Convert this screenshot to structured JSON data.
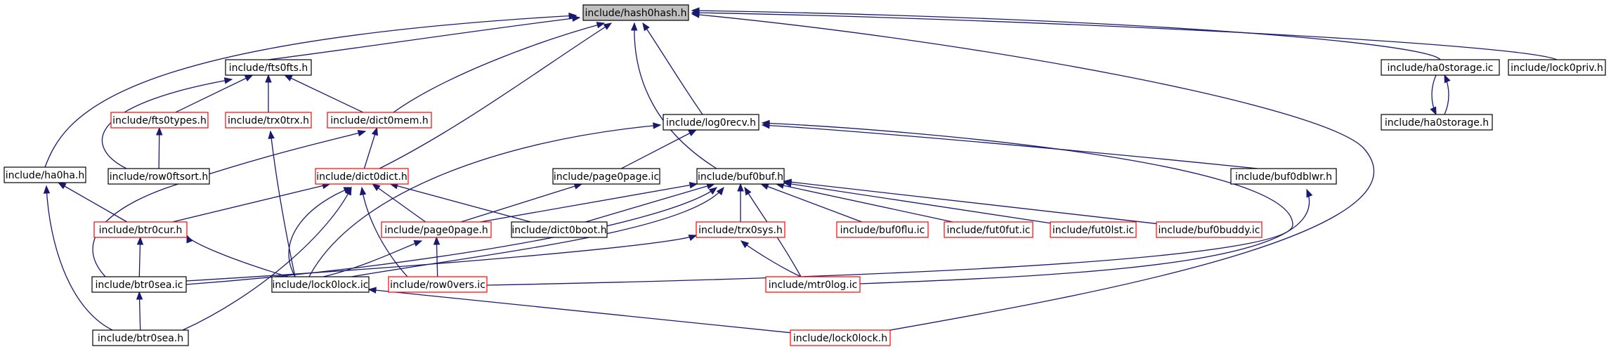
{
  "colors": {
    "background": "#ffffff",
    "edge": "#191970",
    "node_border_default": "#000000",
    "node_border_incomplete": "#ff0000",
    "node_fill_root": "#bfbfbf",
    "node_fill": "#ffffff"
  },
  "nodes": [
    {
      "id": "hash0hash",
      "label": "include/hash0hash.h",
      "style": "root"
    },
    {
      "id": "fts0fts",
      "label": "include/fts0fts.h",
      "style": "normal"
    },
    {
      "id": "ha0storage_ic",
      "label": "include/ha0storage.ic",
      "style": "normal"
    },
    {
      "id": "lock0priv",
      "label": "include/lock0priv.h",
      "style": "normal"
    },
    {
      "id": "fts0types",
      "label": "include/fts0types.h",
      "style": "incomplete"
    },
    {
      "id": "trx0trx",
      "label": "include/trx0trx.h",
      "style": "incomplete"
    },
    {
      "id": "dict0mem",
      "label": "include/dict0mem.h",
      "style": "incomplete"
    },
    {
      "id": "log0recv",
      "label": "include/log0recv.h",
      "style": "normal"
    },
    {
      "id": "ha0storage_h",
      "label": "include/ha0storage.h",
      "style": "normal"
    },
    {
      "id": "ha0ha",
      "label": "include/ha0ha.h",
      "style": "normal"
    },
    {
      "id": "row0ftsort",
      "label": "include/row0ftsort.h",
      "style": "normal"
    },
    {
      "id": "dict0dict",
      "label": "include/dict0dict.h",
      "style": "incomplete"
    },
    {
      "id": "page0page_ic",
      "label": "include/page0page.ic",
      "style": "normal"
    },
    {
      "id": "buf0buf",
      "label": "include/buf0buf.h",
      "style": "normal"
    },
    {
      "id": "buf0dblwr",
      "label": "include/buf0dblwr.h",
      "style": "normal"
    },
    {
      "id": "btr0cur",
      "label": "include/btr0cur.h",
      "style": "incomplete"
    },
    {
      "id": "page0page_h",
      "label": "include/page0page.h",
      "style": "incomplete"
    },
    {
      "id": "dict0boot",
      "label": "include/dict0boot.h",
      "style": "normal"
    },
    {
      "id": "trx0sys",
      "label": "include/trx0sys.h",
      "style": "incomplete"
    },
    {
      "id": "buf0flu",
      "label": "include/buf0flu.ic",
      "style": "incomplete"
    },
    {
      "id": "fut0fut",
      "label": "include/fut0fut.ic",
      "style": "incomplete"
    },
    {
      "id": "fut0lst",
      "label": "include/fut0lst.ic",
      "style": "incomplete"
    },
    {
      "id": "buf0buddy",
      "label": "include/buf0buddy.ic",
      "style": "incomplete"
    },
    {
      "id": "btr0sea_ic",
      "label": "include/btr0sea.ic",
      "style": "normal"
    },
    {
      "id": "lock0lock_ic",
      "label": "include/lock0lock.ic",
      "style": "normal"
    },
    {
      "id": "row0vers",
      "label": "include/row0vers.ic",
      "style": "incomplete"
    },
    {
      "id": "mtr0log",
      "label": "include/mtr0log.ic",
      "style": "incomplete"
    },
    {
      "id": "btr0sea_h",
      "label": "include/btr0sea.h",
      "style": "normal"
    },
    {
      "id": "lock0lock_h",
      "label": "include/lock0lock.h",
      "style": "incomplete"
    }
  ],
  "edges": [
    {
      "from": "fts0fts",
      "to": "hash0hash"
    },
    {
      "from": "ha0storage_ic",
      "to": "hash0hash"
    },
    {
      "from": "lock0priv",
      "to": "hash0hash"
    },
    {
      "from": "dict0mem",
      "to": "hash0hash"
    },
    {
      "from": "log0recv",
      "to": "hash0hash"
    },
    {
      "from": "ha0ha",
      "to": "hash0hash"
    },
    {
      "from": "dict0dict",
      "to": "hash0hash"
    },
    {
      "from": "buf0buf",
      "to": "hash0hash"
    },
    {
      "from": "lock0lock_h",
      "to": "hash0hash"
    },
    {
      "from": "fts0types",
      "to": "fts0fts"
    },
    {
      "from": "trx0trx",
      "to": "fts0fts"
    },
    {
      "from": "dict0mem",
      "to": "fts0fts"
    },
    {
      "from": "row0ftsort",
      "to": "fts0fts"
    },
    {
      "from": "row0ftsort",
      "to": "fts0types"
    },
    {
      "from": "ha0storage_h",
      "to": "ha0storage_ic"
    },
    {
      "from": "ha0storage_ic",
      "to": "ha0storage_h"
    },
    {
      "from": "dict0dict",
      "to": "dict0mem"
    },
    {
      "from": "btr0sea_ic",
      "to": "dict0mem"
    },
    {
      "from": "lock0lock_ic",
      "to": "trx0trx"
    },
    {
      "from": "page0page_ic",
      "to": "log0recv"
    },
    {
      "from": "buf0dblwr",
      "to": "log0recv"
    },
    {
      "from": "lock0lock_ic",
      "to": "log0recv"
    },
    {
      "from": "row0vers",
      "to": "log0recv"
    },
    {
      "from": "mtr0log",
      "to": "buf0dblwr"
    },
    {
      "from": "btr0cur",
      "to": "ha0ha"
    },
    {
      "from": "btr0sea_h",
      "to": "ha0ha"
    },
    {
      "from": "btr0cur",
      "to": "dict0dict"
    },
    {
      "from": "page0page_h",
      "to": "dict0dict"
    },
    {
      "from": "dict0boot",
      "to": "dict0dict"
    },
    {
      "from": "lock0lock_ic",
      "to": "dict0dict"
    },
    {
      "from": "row0vers",
      "to": "dict0dict"
    },
    {
      "from": "btr0sea_h",
      "to": "dict0dict"
    },
    {
      "from": "page0page_h",
      "to": "page0page_ic"
    },
    {
      "from": "page0page_h",
      "to": "buf0buf"
    },
    {
      "from": "dict0boot",
      "to": "buf0buf"
    },
    {
      "from": "trx0sys",
      "to": "buf0buf"
    },
    {
      "from": "buf0flu",
      "to": "buf0buf"
    },
    {
      "from": "fut0fut",
      "to": "buf0buf"
    },
    {
      "from": "fut0lst",
      "to": "buf0buf"
    },
    {
      "from": "buf0buddy",
      "to": "buf0buf"
    },
    {
      "from": "btr0sea_ic",
      "to": "buf0buf"
    },
    {
      "from": "lock0lock_ic",
      "to": "buf0buf"
    },
    {
      "from": "mtr0log",
      "to": "buf0buf"
    },
    {
      "from": "btr0sea_ic",
      "to": "btr0cur"
    },
    {
      "from": "lock0lock_ic",
      "to": "btr0cur"
    },
    {
      "from": "lock0lock_ic",
      "to": "page0page_h"
    },
    {
      "from": "row0vers",
      "to": "page0page_h"
    },
    {
      "from": "btr0sea_ic",
      "to": "trx0sys"
    },
    {
      "from": "mtr0log",
      "to": "trx0sys"
    },
    {
      "from": "btr0sea_h",
      "to": "btr0sea_ic"
    },
    {
      "from": "lock0lock_h",
      "to": "lock0lock_ic"
    }
  ]
}
